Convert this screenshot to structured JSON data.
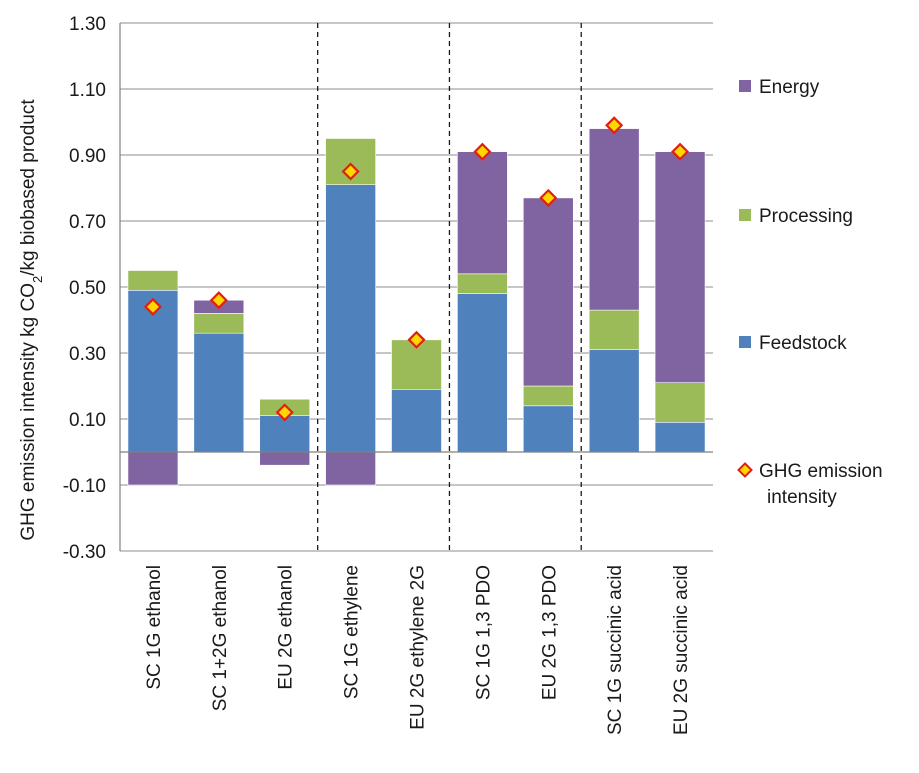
{
  "chart_data": {
    "type": "bar",
    "stacked": true,
    "ylabel": {
      "prefix": "GHG emission intensity kg CO",
      "subscript": "2",
      "suffix": "/kg biobased product"
    },
    "ylim": [
      -0.3,
      1.3
    ],
    "yticks": [
      "1.30",
      "1.10",
      "0.90",
      "0.70",
      "0.50",
      "0.30",
      "0.10",
      "-0.10",
      "-0.30"
    ],
    "ytick_values": [
      1.3,
      1.1,
      0.9,
      0.7,
      0.5,
      0.3,
      0.1,
      -0.1,
      -0.3
    ],
    "grid": true,
    "legend_position": "right",
    "categories": [
      "SC 1G ethanol",
      "SC 1+2G ethanol",
      "EU 2G ethanol",
      "SC 1G ethylene",
      "EU 2G ethylene 2G",
      "SC 1G 1,3 PDO",
      "EU 2G 1,3 PDO",
      "SC 1G succinic acid",
      "EU 2G succinic acid"
    ],
    "group_separators_after": [
      2,
      4,
      6
    ],
    "series": [
      {
        "name": "Energy",
        "color": "#8064a2",
        "values": [
          -0.1,
          0.04,
          -0.04,
          -0.1,
          0.0,
          0.37,
          0.57,
          0.55,
          0.7
        ]
      },
      {
        "name": "Processing",
        "color": "#9bbb59",
        "values": [
          0.06,
          0.06,
          0.05,
          0.14,
          0.15,
          0.06,
          0.06,
          0.12,
          0.12
        ]
      },
      {
        "name": "Feedstock",
        "color": "#4f81bd",
        "values": [
          0.49,
          0.36,
          0.11,
          0.81,
          0.19,
          0.48,
          0.14,
          0.31,
          0.09
        ]
      }
    ],
    "markers": {
      "name": "GHG emission intensity",
      "color_fill": "#ffd700",
      "color_edge": "#e02010",
      "values": [
        0.44,
        0.46,
        0.12,
        0.85,
        0.34,
        0.91,
        0.77,
        0.99,
        0.91
      ]
    }
  }
}
